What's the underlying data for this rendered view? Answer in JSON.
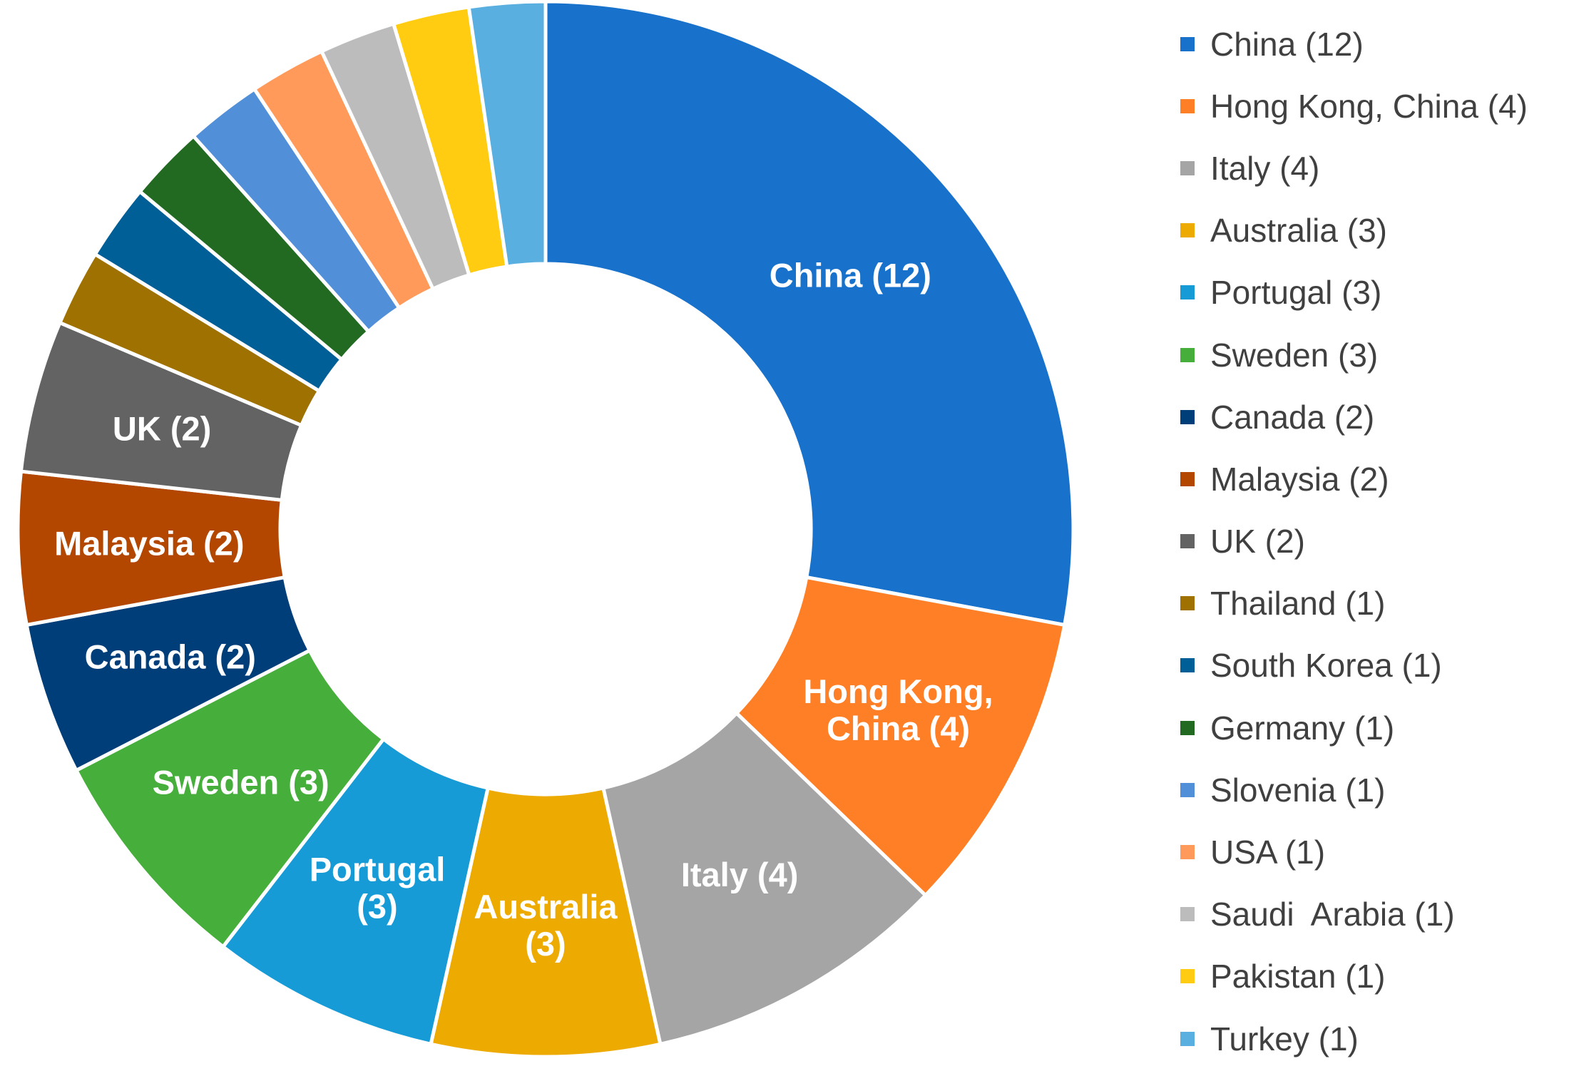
{
  "chart_data": {
    "type": "pie",
    "donut": true,
    "start": "top, clockwise",
    "legend_position": "right",
    "slices": [
      {
        "label": "China (12)",
        "value": 12,
        "color": "#1872CB",
        "slice_label": [
          "China (12)"
        ]
      },
      {
        "label": "Hong Kong, China (4)",
        "value": 4,
        "color": "#FF7F27",
        "slice_label": [
          "Hong Kong,",
          "China (4)"
        ]
      },
      {
        "label": "Italy (4)",
        "value": 4,
        "color": "#A5A5A5",
        "slice_label": [
          "Italy (4)"
        ]
      },
      {
        "label": "Australia (3)",
        "value": 3,
        "color": "#EDAA00",
        "slice_label": [
          "Australia",
          "(3)"
        ]
      },
      {
        "label": "Portugal (3)",
        "value": 3,
        "color": "#179BD7",
        "slice_label": [
          "Portugal",
          "(3)"
        ]
      },
      {
        "label": "Sweden (3)",
        "value": 3,
        "color": "#46AE3A",
        "slice_label": [
          "Sweden (3)"
        ]
      },
      {
        "label": "Canada (2)",
        "value": 2,
        "color": "#003E7A",
        "slice_label": [
          "Canada (2)"
        ]
      },
      {
        "label": "Malaysia (2)",
        "value": 2,
        "color": "#B34700",
        "slice_label": [
          "Malaysia (2)"
        ]
      },
      {
        "label": "UK (2)",
        "value": 2,
        "color": "#636363",
        "slice_label": [
          "UK (2)"
        ]
      },
      {
        "label": "Thailand (1)",
        "value": 1,
        "color": "#9E7100",
        "slice_label": []
      },
      {
        "label": "South Korea (1)",
        "value": 1,
        "color": "#005F96",
        "slice_label": []
      },
      {
        "label": "Germany (1)",
        "value": 1,
        "color": "#226A22",
        "slice_label": []
      },
      {
        "label": "Slovenia (1)",
        "value": 1,
        "color": "#5190D9",
        "slice_label": []
      },
      {
        "label": "USA (1)",
        "value": 1,
        "color": "#FF9A5A",
        "slice_label": []
      },
      {
        "label": "Saudi  Arabia (1)",
        "value": 1,
        "color": "#BCBCBC",
        "slice_label": []
      },
      {
        "label": "Pakistan (1)",
        "value": 1,
        "color": "#FFCC11",
        "slice_label": []
      },
      {
        "label": "Turkey (1)",
        "value": 1,
        "color": "#5AAFE1",
        "slice_label": []
      }
    ]
  }
}
